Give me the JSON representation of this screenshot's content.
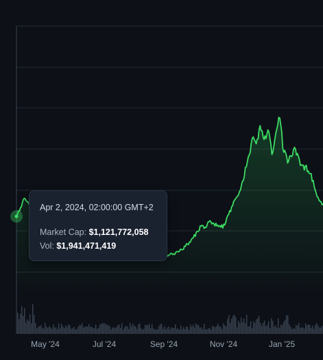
{
  "tooltip": {
    "date": "Apr 2, 2024, 02:00:00 GMT+2",
    "market_cap_label": "Market Cap:",
    "market_cap_value": "$1,121,772,058",
    "volume_label": "Vol:",
    "volume_value": "$1,941,471,419"
  },
  "colors": {
    "background": "#0d1117",
    "line": "#3ddc64",
    "grid": "#232a35",
    "volume": "#3a4351",
    "tooltip_bg": "#1a2230"
  },
  "chart_data": {
    "type": "area",
    "title": "",
    "xlabel": "",
    "ylabel": "",
    "x_tick_labels": [
      "May '24",
      "Jul '24",
      "Sep '24",
      "Nov '24",
      "Jan '25"
    ],
    "grid": true,
    "highlighted_point": {
      "date": "2024-04-02",
      "market_cap": 1121772058,
      "volume": 1941471419
    },
    "series": [
      {
        "kind": "market_cap_relative",
        "x": [
          "2024-04-02",
          "2024-04-06",
          "2024-04-10",
          "2024-04-14",
          "2024-04-18",
          "2024-04-22",
          "2024-04-26",
          "2024-04-30",
          "2024-05-04",
          "2024-05-08",
          "2024-05-12",
          "2024-05-16",
          "2024-05-20",
          "2024-05-24",
          "2024-05-28",
          "2024-06-01",
          "2024-06-05",
          "2024-06-09",
          "2024-06-13",
          "2024-06-17",
          "2024-06-21",
          "2024-06-25",
          "2024-06-29",
          "2024-07-03",
          "2024-07-07",
          "2024-07-11",
          "2024-07-15",
          "2024-07-19",
          "2024-07-23",
          "2024-07-27",
          "2024-07-31",
          "2024-08-04",
          "2024-08-08",
          "2024-08-12",
          "2024-08-16",
          "2024-08-20",
          "2024-08-24",
          "2024-08-28",
          "2024-09-01",
          "2024-09-05",
          "2024-09-09",
          "2024-09-13",
          "2024-09-17",
          "2024-09-21",
          "2024-09-25",
          "2024-09-29",
          "2024-10-03",
          "2024-10-07",
          "2024-10-11",
          "2024-10-15",
          "2024-10-19",
          "2024-10-23",
          "2024-10-27",
          "2024-10-31",
          "2024-11-04",
          "2024-11-08",
          "2024-11-12",
          "2024-11-16",
          "2024-11-20",
          "2024-11-24",
          "2024-11-28",
          "2024-12-02",
          "2024-12-06",
          "2024-12-10",
          "2024-12-14",
          "2024-12-18",
          "2024-12-22",
          "2024-12-26",
          "2024-12-30",
          "2025-01-03",
          "2025-01-07",
          "2025-01-11",
          "2025-01-15",
          "2025-01-19",
          "2025-01-23",
          "2025-01-27",
          "2025-01-31",
          "2025-02-04",
          "2025-02-08"
        ],
        "values": [
          1.0,
          1.08,
          1.17,
          1.13,
          1.02,
          0.94,
          0.9,
          0.86,
          0.84,
          0.83,
          0.81,
          0.8,
          0.79,
          0.77,
          0.76,
          0.75,
          0.74,
          0.73,
          0.72,
          0.71,
          0.7,
          0.69,
          0.68,
          0.68,
          0.67,
          0.67,
          0.66,
          0.66,
          0.66,
          0.65,
          0.65,
          0.65,
          0.64,
          0.64,
          0.64,
          0.64,
          0.64,
          0.64,
          0.64,
          0.64,
          0.65,
          0.67,
          0.69,
          0.72,
          0.76,
          0.8,
          0.86,
          0.91,
          0.9,
          0.95,
          0.94,
          0.91,
          0.9,
          0.92,
          1.02,
          1.1,
          1.18,
          1.25,
          1.38,
          1.56,
          1.73,
          1.68,
          1.85,
          1.72,
          1.81,
          1.58,
          1.78,
          1.92,
          1.6,
          1.5,
          1.56,
          1.63,
          1.53,
          1.48,
          1.42,
          1.4,
          1.25,
          1.15,
          1.12
        ]
      }
    ]
  }
}
